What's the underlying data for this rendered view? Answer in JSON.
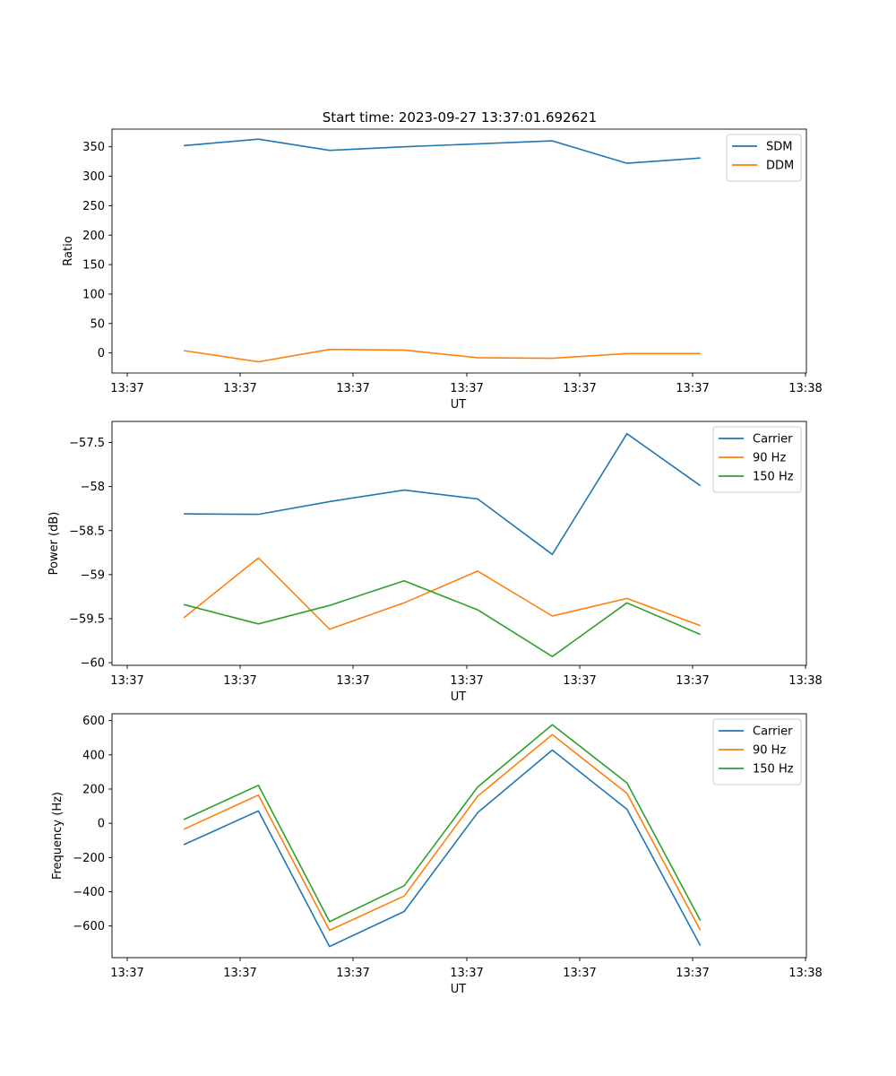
{
  "title": "Start time: 2023-09-27 13:37:01.692621",
  "chart_data": [
    {
      "type": "line",
      "xlabel": "UT",
      "ylabel": "Ratio",
      "xticks": [
        "13:37",
        "13:37",
        "13:37",
        "13:37",
        "13:37",
        "13:37",
        "13:38"
      ],
      "ylim": [
        -34,
        380
      ],
      "yticks": [
        0,
        50,
        100,
        150,
        200,
        250,
        300,
        350
      ],
      "legend": "top-right",
      "x": [
        0.5,
        1.16,
        1.79,
        2.45,
        3.1,
        3.76,
        4.42,
        5.07
      ],
      "series": [
        {
          "name": "SDM",
          "color": "#1f77b4",
          "values": [
            352,
            363,
            344,
            350,
            355,
            360,
            322,
            331
          ]
        },
        {
          "name": "DDM",
          "color": "#ff7f0e",
          "values": [
            4,
            -15,
            6,
            5,
            -8,
            -9,
            -1,
            -1
          ]
        }
      ]
    },
    {
      "type": "line",
      "xlabel": "UT",
      "ylabel": "Power (dB)",
      "xticks": [
        "13:37",
        "13:37",
        "13:37",
        "13:37",
        "13:37",
        "13:37",
        "13:38"
      ],
      "ylim": [
        -60.03,
        -57.26
      ],
      "yticks": [
        -60.0,
        -59.5,
        -59.0,
        -58.5,
        -58.0,
        -57.5
      ],
      "legend": "top-right",
      "x": [
        0.5,
        1.16,
        1.79,
        2.45,
        3.1,
        3.76,
        4.42,
        5.07
      ],
      "series": [
        {
          "name": "Carrier",
          "color": "#1f77b4",
          "values": [
            -58.31,
            -58.315,
            -58.17,
            -58.04,
            -58.14,
            -58.77,
            -57.4,
            -57.99
          ]
        },
        {
          "name": "90 Hz",
          "color": "#ff7f0e",
          "values": [
            -59.49,
            -58.81,
            -59.62,
            -59.32,
            -58.96,
            -59.47,
            -59.27,
            -59.58
          ]
        },
        {
          "name": "150 Hz",
          "color": "#2ca02c",
          "values": [
            -59.34,
            -59.56,
            -59.35,
            -59.07,
            -59.4,
            -59.93,
            -59.32,
            -59.68
          ]
        }
      ]
    },
    {
      "type": "line",
      "xlabel": "UT",
      "ylabel": "Frequency (Hz)",
      "xticks": [
        "13:37",
        "13:37",
        "13:37",
        "13:37",
        "13:37",
        "13:37",
        "13:38"
      ],
      "ylim": [
        -785,
        640
      ],
      "yticks": [
        -600,
        -400,
        -200,
        0,
        200,
        400,
        600
      ],
      "legend": "top-right",
      "x": [
        0.5,
        1.16,
        1.79,
        2.45,
        3.1,
        3.76,
        4.42,
        5.07
      ],
      "series": [
        {
          "name": "Carrier",
          "color": "#1f77b4",
          "values": [
            -125,
            72,
            -720,
            -515,
            62,
            428,
            82,
            -715
          ]
        },
        {
          "name": "90 Hz",
          "color": "#ff7f0e",
          "values": [
            -35,
            165,
            -625,
            -425,
            158,
            518,
            175,
            -625
          ]
        },
        {
          "name": "150 Hz",
          "color": "#2ca02c",
          "values": [
            22,
            222,
            -575,
            -365,
            212,
            576,
            236,
            -568
          ]
        }
      ]
    }
  ]
}
